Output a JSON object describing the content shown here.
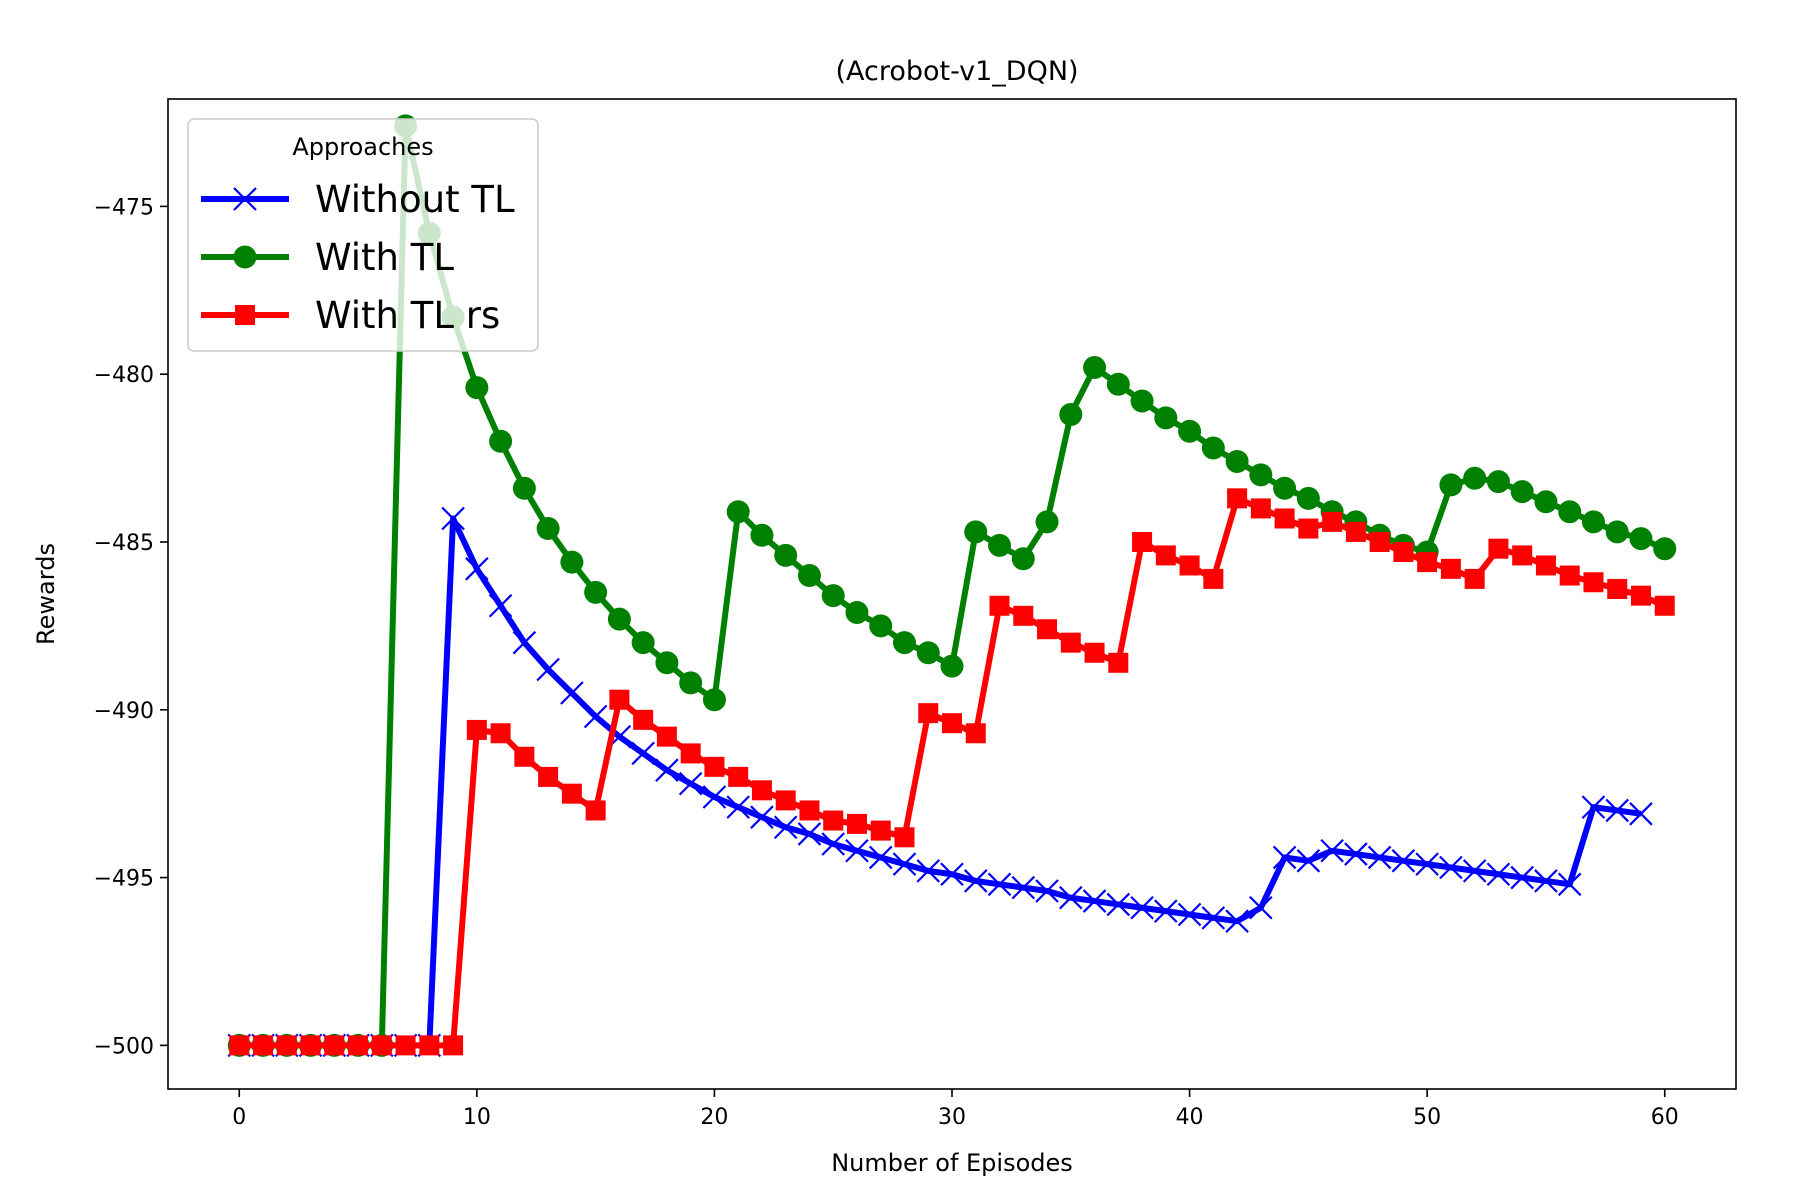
{
  "chart_data": {
    "type": "line",
    "title": "(Acrobot-v1_DQN)",
    "xlabel": "Number of Episodes",
    "ylabel": "Rewards",
    "xlim": [
      -3,
      63
    ],
    "ylim": [
      -501.3,
      -471.8
    ],
    "xticks": [
      0,
      10,
      20,
      30,
      40,
      50,
      60
    ],
    "yticks": [
      -500,
      -495,
      -490,
      -485,
      -480,
      -475
    ],
    "xtick_labels": [
      "0",
      "10",
      "20",
      "30",
      "40",
      "50",
      "60"
    ],
    "ytick_labels": [
      "−500",
      "−495",
      "−490",
      "−485",
      "−480",
      "−475"
    ],
    "grid": false,
    "legend": {
      "title": "Approaches",
      "position": "top-left"
    },
    "series": [
      {
        "name": "Without TL",
        "color": "#0000ff",
        "marker": "x",
        "x": [
          0,
          1,
          2,
          3,
          4,
          5,
          6,
          7,
          8,
          9,
          10,
          11,
          12,
          13,
          14,
          15,
          16,
          17,
          18,
          19,
          20,
          21,
          22,
          23,
          24,
          25,
          26,
          27,
          28,
          29,
          30,
          31,
          32,
          33,
          34,
          35,
          36,
          37,
          38,
          39,
          40,
          41,
          42,
          43,
          44,
          45,
          46,
          47,
          48,
          49,
          50,
          51,
          52,
          53,
          54,
          55,
          56,
          57,
          58,
          59
        ],
        "values": [
          -500,
          -500,
          -500,
          -500,
          -500,
          -500,
          -500,
          -500,
          -500,
          -484.3,
          -485.8,
          -486.9,
          -488.0,
          -488.8,
          -489.5,
          -490.2,
          -490.8,
          -491.3,
          -491.8,
          -492.2,
          -492.6,
          -492.9,
          -493.2,
          -493.5,
          -493.7,
          -494.0,
          -494.2,
          -494.4,
          -494.6,
          -494.8,
          -494.9,
          -495.1,
          -495.2,
          -495.3,
          -495.4,
          -495.6,
          -495.7,
          -495.8,
          -495.9,
          -496.0,
          -496.1,
          -496.2,
          -496.3,
          -495.9,
          -494.4,
          -494.5,
          -494.2,
          -494.3,
          -494.4,
          -494.5,
          -494.6,
          -494.7,
          -494.8,
          -494.9,
          -495.0,
          -495.1,
          -495.2,
          -492.9,
          -493.0,
          -493.1
        ]
      },
      {
        "name": "With TL",
        "color": "#008000",
        "marker": "o",
        "x": [
          0,
          1,
          2,
          3,
          4,
          5,
          6,
          7,
          8,
          9,
          10,
          11,
          12,
          13,
          14,
          15,
          16,
          17,
          18,
          19,
          20,
          21,
          22,
          23,
          24,
          25,
          26,
          27,
          28,
          29,
          30,
          31,
          32,
          33,
          34,
          35,
          36,
          37,
          38,
          39,
          40,
          41,
          42,
          43,
          44,
          45,
          46,
          47,
          48,
          49,
          50,
          51,
          52,
          53,
          54,
          55,
          56,
          57,
          58,
          59,
          60
        ],
        "values": [
          -500,
          -500,
          -500,
          -500,
          -500,
          -500,
          -500,
          -472.6,
          -475.8,
          -478.3,
          -480.4,
          -482.0,
          -483.4,
          -484.6,
          -485.6,
          -486.5,
          -487.3,
          -488.0,
          -488.6,
          -489.2,
          -489.7,
          -484.1,
          -484.8,
          -485.4,
          -486.0,
          -486.6,
          -487.1,
          -487.5,
          -488.0,
          -488.3,
          -488.7,
          -484.7,
          -485.1,
          -485.5,
          -484.4,
          -481.2,
          -479.8,
          -480.3,
          -480.8,
          -481.3,
          -481.7,
          -482.2,
          -482.6,
          -483.0,
          -483.4,
          -483.7,
          -484.1,
          -484.4,
          -484.8,
          -485.1,
          -485.3,
          -483.3,
          -483.1,
          -483.2,
          -483.5,
          -483.8,
          -484.1,
          -484.4,
          -484.7,
          -484.9,
          -485.2
        ]
      },
      {
        "name": "With TL rs",
        "color": "#ff0000",
        "marker": "s",
        "x": [
          0,
          1,
          2,
          3,
          4,
          5,
          6,
          7,
          8,
          9,
          10,
          11,
          12,
          13,
          14,
          15,
          16,
          17,
          18,
          19,
          20,
          21,
          22,
          23,
          24,
          25,
          26,
          27,
          28,
          29,
          30,
          31,
          32,
          33,
          34,
          35,
          36,
          37,
          38,
          39,
          40,
          41,
          42,
          43,
          44,
          45,
          46,
          47,
          48,
          49,
          50,
          51,
          52,
          53,
          54,
          55,
          56,
          57,
          58,
          59,
          60
        ],
        "values": [
          -500,
          -500,
          -500,
          -500,
          -500,
          -500,
          -500,
          -500,
          -500,
          -500,
          -490.6,
          -490.7,
          -491.4,
          -492.0,
          -492.5,
          -493.0,
          -489.7,
          -490.3,
          -490.8,
          -491.3,
          -491.7,
          -492.0,
          -492.4,
          -492.7,
          -493.0,
          -493.3,
          -493.4,
          -493.6,
          -493.8,
          -490.1,
          -490.4,
          -490.7,
          -486.9,
          -487.2,
          -487.6,
          -488.0,
          -488.3,
          -488.6,
          -485.0,
          -485.4,
          -485.7,
          -486.1,
          -483.7,
          -484.0,
          -484.3,
          -484.6,
          -484.4,
          -484.7,
          -485.0,
          -485.3,
          -485.6,
          -485.8,
          -486.1,
          -485.2,
          -485.4,
          -485.7,
          -486.0,
          -486.2,
          -486.4,
          -486.6,
          -486.9
        ]
      }
    ]
  }
}
